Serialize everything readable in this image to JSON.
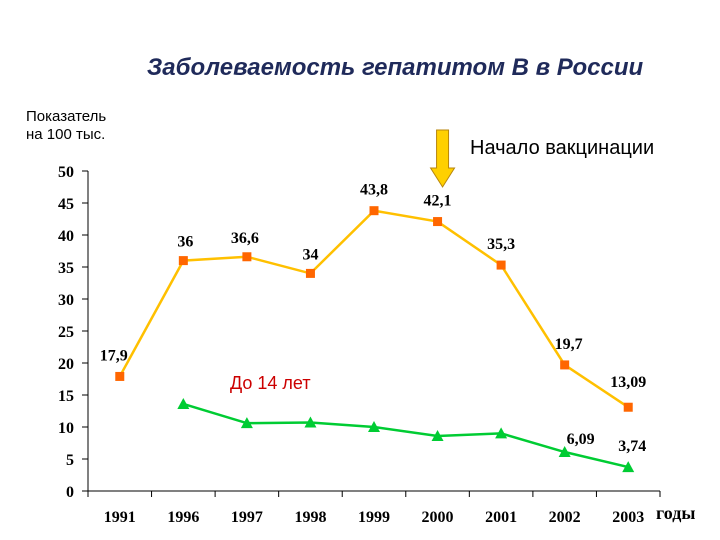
{
  "chart_data": {
    "type": "line",
    "title": "Заболеваемость гепатитом В в России",
    "ylabel": [
      "Показатель",
      "на 100 тыс."
    ],
    "xlabel": "годы",
    "annotation": "Начало вакцинации",
    "annotation_at": "2000",
    "categories": [
      "1991",
      "1996",
      "1997",
      "1998",
      "1999",
      "2000",
      "2001",
      "2002",
      "2003"
    ],
    "ylim": [
      0,
      50
    ],
    "yticks": [
      "0",
      "5",
      "10",
      "15",
      "20",
      "25",
      "30",
      "35",
      "40",
      "45",
      "50"
    ],
    "grid": false,
    "series": [
      {
        "color": "#ffc000",
        "marker_color": "#ff6600",
        "marker": "square",
        "values": [
          17.9,
          36,
          36.6,
          34,
          43.8,
          42.1,
          35.3,
          19.7,
          13.09
        ],
        "labels": [
          "17,9",
          "36",
          "36,6",
          "34",
          "43,8",
          "42,1",
          "35,3",
          "19,7",
          "13,09"
        ]
      },
      {
        "name": "До 14 лет",
        "color": "#00cc33",
        "marker_color": "#00cc33",
        "marker": "triangle",
        "values": [
          null,
          13.6,
          10.6,
          10.7,
          10.0,
          8.6,
          9.0,
          6.09,
          3.74
        ],
        "labels": [
          null,
          null,
          null,
          null,
          null,
          null,
          null,
          "6,09",
          "3,74"
        ]
      }
    ]
  },
  "colors": {
    "arrow": "#ffd000",
    "arrow_border": "#b8860b"
  }
}
